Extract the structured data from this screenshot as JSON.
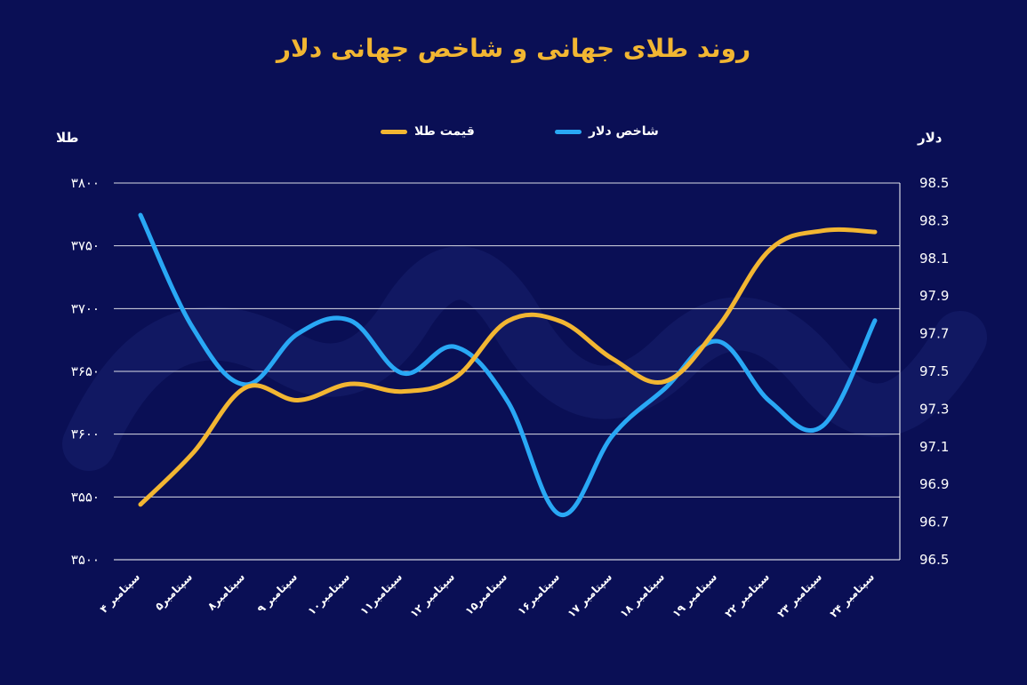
{
  "title": "روند طلای جهانی و شاخص جهانی دلار",
  "legend": {
    "gold": "قیمت طلا",
    "dollar": "شاخص دلار"
  },
  "axis_titles": {
    "left": "طلا",
    "right": "دلار"
  },
  "colors": {
    "background": "#0a0f55",
    "gold": "#f2b632",
    "dollar": "#29a8f5",
    "grid": "#ffffff",
    "text": "#ffffff"
  },
  "chart_data": {
    "type": "line",
    "title": "روند طلای جهانی و شاخص جهانی دلار",
    "xlabel": "",
    "ylabel": "طلا",
    "y2label": "دلار",
    "categories": [
      "۴ سپتامبر",
      "۵سپتامبر",
      "۸سپتامبر",
      "۹ سپتامبر",
      "۱۰سپتامبر",
      "۱۱سپتامبر",
      "۱۲ سپتامبر",
      "۱۵سپتامبر",
      "۱۶سپتامبر",
      "۱۷ سپتامبر",
      "۱۸ سپتامبر",
      "۱۹ سپتامبر",
      "۲۲ سپتامبر",
      "۲۳ سپتامبر",
      "۲۴ سپتامبر"
    ],
    "ylim": [
      3500,
      3800
    ],
    "y_ticks": [
      3500,
      3550,
      3600,
      3650,
      3700,
      3750,
      3800
    ],
    "y_tick_labels": [
      "۳۵۰۰",
      "۳۵۵۰",
      "۳۶۰۰",
      "۳۶۵۰",
      "۳۷۰۰",
      "۳۷۵۰",
      "۳۸۰۰"
    ],
    "y2lim": [
      96.5,
      98.5
    ],
    "y2_ticks": [
      96.5,
      96.7,
      96.9,
      97.1,
      97.3,
      97.5,
      97.7,
      97.9,
      98.1,
      98.3,
      98.5
    ],
    "y2_tick_labels": [
      "96.5",
      "96.7",
      "96.9",
      "97.1",
      "97.3",
      "97.5",
      "97.7",
      "97.9",
      "98.1",
      "98.3",
      "98.5"
    ],
    "series": [
      {
        "name": "قیمت طلا",
        "axis": "left",
        "values": [
          3544,
          3585,
          3637,
          3627,
          3640,
          3634,
          3645,
          3690,
          3690,
          3660,
          3642,
          3685,
          3747,
          3762,
          3761
        ]
      },
      {
        "name": "شاخص دلار",
        "axis": "right",
        "values": [
          98.33,
          97.73,
          97.43,
          97.7,
          97.77,
          97.49,
          97.63,
          97.34,
          96.74,
          97.16,
          97.41,
          97.66,
          97.34,
          97.21,
          97.77
        ]
      }
    ],
    "grid": true,
    "legend_position": "top"
  }
}
